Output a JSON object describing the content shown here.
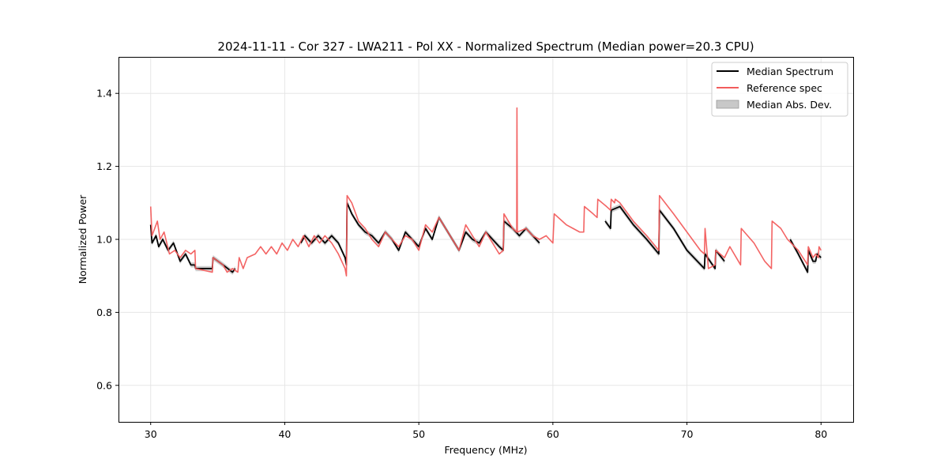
{
  "chart_data": {
    "type": "line",
    "title": "2024-11-11 - Cor 327 - LWA211 - Pol XX - Normalized Spectrum (Median power=20.3 CPU)",
    "xlabel": "Frequency (MHz)",
    "ylabel": "Normalized Power",
    "xlim": [
      27.6,
      82.4
    ],
    "ylim": [
      0.5,
      1.5
    ],
    "xticks": [
      30,
      40,
      50,
      60,
      70,
      80
    ],
    "yticks": [
      0.6,
      0.8,
      1.0,
      1.2,
      1.4
    ],
    "xtick_labels": [
      "30",
      "40",
      "50",
      "60",
      "70",
      "80"
    ],
    "ytick_labels": [
      "0.6",
      "0.8",
      "1.0",
      "1.2",
      "1.4"
    ],
    "grid": true,
    "legend_position": "top-right",
    "colors": {
      "median": "#000000",
      "reference": "#f25c5c",
      "mad": "#c0c0c0",
      "grid": "#e6e6e6"
    },
    "legend": [
      "Median Spectrum",
      "Reference spec",
      "Median Abs. Dev."
    ],
    "series": [
      {
        "name": "Median Spectrum",
        "segments": [
          [
            [
              30.0,
              1.04
            ],
            [
              30.1,
              0.99
            ],
            [
              30.4,
              1.01
            ],
            [
              30.6,
              0.98
            ],
            [
              30.9,
              1.0
            ],
            [
              31.3,
              0.97
            ],
            [
              31.7,
              0.99
            ],
            [
              32.2,
              0.94
            ],
            [
              32.6,
              0.96
            ],
            [
              33.0,
              0.93
            ],
            [
              33.3,
              0.93
            ],
            [
              33.35,
              0.92
            ],
            [
              34.6,
              0.92
            ],
            [
              34.65,
              0.95
            ],
            [
              35.4,
              0.93
            ],
            [
              36.1,
              0.91
            ],
            [
              36.3,
              0.92
            ]
          ],
          [
            [
              41.2,
              0.99
            ],
            [
              41.5,
              1.01
            ],
            [
              42.0,
              0.99
            ],
            [
              42.5,
              1.01
            ],
            [
              43.0,
              0.99
            ],
            [
              43.5,
              1.01
            ],
            [
              44.0,
              0.99
            ],
            [
              44.5,
              0.95
            ],
            [
              44.6,
              0.93
            ],
            [
              44.65,
              1.1
            ],
            [
              45.0,
              1.07
            ],
            [
              45.5,
              1.04
            ],
            [
              46.0,
              1.02
            ],
            [
              46.5,
              1.01
            ],
            [
              47.0,
              0.99
            ],
            [
              47.5,
              1.02
            ],
            [
              48.0,
              1.0
            ],
            [
              48.5,
              0.97
            ],
            [
              49.0,
              1.02
            ],
            [
              49.5,
              1.0
            ],
            [
              50.0,
              0.98
            ],
            [
              50.5,
              1.03
            ],
            [
              51.0,
              1.0
            ],
            [
              51.5,
              1.06
            ],
            [
              52.0,
              1.03
            ],
            [
              52.5,
              1.0
            ],
            [
              53.0,
              0.97
            ],
            [
              53.5,
              1.02
            ],
            [
              54.0,
              1.0
            ],
            [
              54.5,
              0.99
            ],
            [
              55.0,
              1.02
            ],
            [
              55.5,
              1.0
            ],
            [
              56.0,
              0.98
            ],
            [
              56.3,
              0.97
            ],
            [
              56.35,
              1.05
            ],
            [
              57.0,
              1.03
            ],
            [
              57.5,
              1.01
            ],
            [
              58.0,
              1.03
            ],
            [
              58.5,
              1.01
            ],
            [
              59.0,
              0.99
            ]
          ],
          [
            [
              63.9,
              1.05
            ],
            [
              64.3,
              1.03
            ],
            [
              64.35,
              1.08
            ],
            [
              65.0,
              1.09
            ],
            [
              66.0,
              1.04
            ],
            [
              67.0,
              1.0
            ],
            [
              67.9,
              0.96
            ],
            [
              67.95,
              1.08
            ],
            [
              69.0,
              1.03
            ],
            [
              70.0,
              0.97
            ],
            [
              71.3,
              0.92
            ],
            [
              71.35,
              0.96
            ],
            [
              72.1,
              0.92
            ],
            [
              72.15,
              0.97
            ],
            [
              72.8,
              0.94
            ]
          ],
          [
            [
              77.7,
              1.0
            ],
            [
              78.3,
              0.96
            ],
            [
              79.0,
              0.91
            ],
            [
              79.05,
              0.97
            ],
            [
              79.4,
              0.94
            ],
            [
              79.6,
              0.94
            ],
            [
              79.7,
              0.96
            ],
            [
              80.0,
              0.95
            ]
          ]
        ]
      },
      {
        "name": "Reference spec",
        "segments": [
          [
            [
              30.0,
              1.09
            ],
            [
              30.1,
              1.01
            ],
            [
              30.5,
              1.05
            ],
            [
              30.7,
              1.0
            ],
            [
              31.0,
              1.02
            ],
            [
              31.4,
              0.96
            ],
            [
              31.8,
              0.97
            ],
            [
              32.2,
              0.95
            ],
            [
              32.6,
              0.97
            ],
            [
              33.0,
              0.96
            ],
            [
              33.3,
              0.97
            ],
            [
              33.35,
              0.92
            ],
            [
              34.6,
              0.91
            ],
            [
              34.65,
              0.95
            ],
            [
              35.4,
              0.93
            ],
            [
              35.7,
              0.91
            ],
            [
              36.1,
              0.92
            ],
            [
              36.5,
              0.91
            ],
            [
              36.6,
              0.95
            ],
            [
              36.9,
              0.92
            ],
            [
              37.2,
              0.95
            ],
            [
              37.8,
              0.96
            ],
            [
              38.2,
              0.98
            ],
            [
              38.6,
              0.96
            ],
            [
              39.0,
              0.98
            ],
            [
              39.4,
              0.96
            ],
            [
              39.8,
              0.99
            ],
            [
              40.2,
              0.97
            ],
            [
              40.6,
              1.0
            ],
            [
              41.0,
              0.98
            ],
            [
              41.4,
              1.01
            ],
            [
              41.8,
              0.98
            ],
            [
              42.2,
              1.01
            ],
            [
              42.6,
              0.99
            ],
            [
              43.0,
              1.01
            ],
            [
              43.5,
              0.99
            ],
            [
              44.0,
              0.96
            ],
            [
              44.5,
              0.92
            ],
            [
              44.6,
              0.9
            ],
            [
              44.65,
              1.12
            ],
            [
              45.0,
              1.1
            ],
            [
              45.5,
              1.05
            ],
            [
              46.0,
              1.03
            ],
            [
              46.5,
              1.0
            ],
            [
              47.0,
              0.98
            ],
            [
              47.5,
              1.02
            ],
            [
              48.0,
              1.0
            ],
            [
              48.5,
              0.98
            ],
            [
              49.0,
              1.01
            ],
            [
              49.5,
              1.0
            ],
            [
              50.0,
              0.97
            ],
            [
              50.5,
              1.04
            ],
            [
              51.0,
              1.02
            ],
            [
              51.5,
              1.06
            ],
            [
              52.0,
              1.03
            ],
            [
              52.5,
              1.0
            ],
            [
              53.0,
              0.97
            ],
            [
              53.5,
              1.04
            ],
            [
              54.0,
              1.01
            ],
            [
              54.5,
              0.98
            ],
            [
              55.0,
              1.02
            ],
            [
              55.5,
              0.99
            ],
            [
              56.0,
              0.96
            ],
            [
              56.3,
              0.97
            ],
            [
              56.35,
              1.07
            ],
            [
              57.0,
              1.03
            ],
            [
              57.3,
              1.02
            ],
            [
              57.32,
              1.36
            ],
            [
              57.35,
              1.02
            ],
            [
              58.0,
              1.03
            ],
            [
              58.5,
              1.01
            ],
            [
              59.0,
              1.0
            ],
            [
              59.5,
              1.01
            ],
            [
              60.0,
              0.99
            ],
            [
              60.1,
              1.07
            ],
            [
              61.0,
              1.04
            ],
            [
              61.5,
              1.03
            ],
            [
              62.0,
              1.02
            ],
            [
              62.3,
              1.02
            ],
            [
              62.35,
              1.09
            ],
            [
              63.0,
              1.07
            ],
            [
              63.3,
              1.06
            ],
            [
              63.35,
              1.11
            ],
            [
              64.0,
              1.09
            ],
            [
              64.3,
              1.08
            ],
            [
              64.35,
              1.11
            ],
            [
              64.6,
              1.1
            ],
            [
              64.65,
              1.11
            ],
            [
              65.0,
              1.1
            ],
            [
              66.0,
              1.05
            ],
            [
              67.0,
              1.01
            ],
            [
              67.9,
              0.97
            ],
            [
              67.95,
              1.12
            ],
            [
              69.0,
              1.07
            ],
            [
              70.0,
              1.02
            ],
            [
              71.0,
              0.97
            ],
            [
              71.3,
              0.96
            ],
            [
              71.35,
              1.03
            ],
            [
              71.6,
              0.92
            ],
            [
              72.1,
              0.93
            ],
            [
              72.15,
              0.97
            ],
            [
              72.8,
              0.95
            ],
            [
              73.2,
              0.98
            ],
            [
              74.0,
              0.93
            ],
            [
              74.05,
              1.03
            ],
            [
              75.0,
              0.99
            ],
            [
              75.8,
              0.94
            ],
            [
              76.3,
              0.92
            ],
            [
              76.35,
              1.05
            ],
            [
              77.0,
              1.03
            ],
            [
              77.5,
              1.0
            ],
            [
              78.3,
              0.97
            ],
            [
              79.0,
              0.93
            ],
            [
              79.05,
              0.98
            ],
            [
              79.4,
              0.95
            ],
            [
              79.6,
              0.96
            ],
            [
              79.8,
              0.95
            ],
            [
              79.85,
              0.98
            ],
            [
              80.0,
              0.97
            ]
          ]
        ]
      }
    ],
    "mad_band_halfwidth": 0.007
  }
}
